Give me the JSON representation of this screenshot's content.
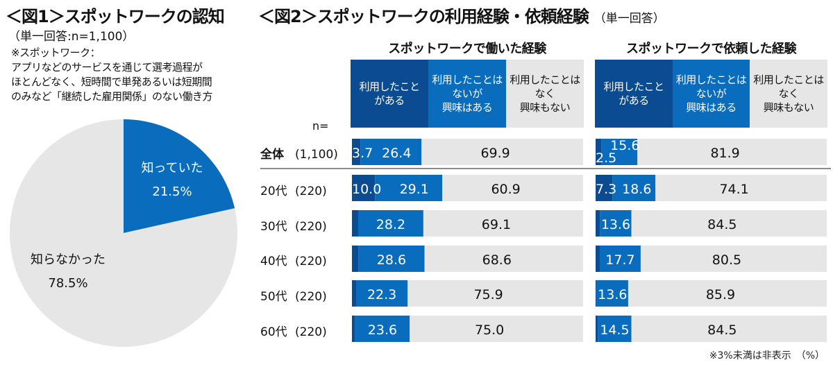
{
  "fig1": {
    "title": "＜図1＞スポットワークの認知",
    "subtitle": "（単一回答:n=1,100）",
    "note_lines": [
      "※スポットワーク：",
      "アプリなどのサービスを通じて選考過程が",
      "ほとんどなく、短時間で単発あるいは短期間",
      "のみなど「継続した雇用関係」のない働き方"
    ]
  },
  "fig2": {
    "title": "＜図2＞スポットワークの利用経験・依頼経験",
    "title_sub": "（単一回答）",
    "n_label": "n=",
    "footnote": "※3%未満は非表示　（%）"
  },
  "colors": {
    "dark_blue": "#0a4b92",
    "mid_blue": "#0a6cbd",
    "light_gray": "#e6e6e6",
    "separator": "#8c8c8c"
  },
  "chart_data": [
    {
      "type": "pie",
      "title": "＜図1＞スポットワークの認知",
      "labels": [
        "知っていた",
        "知らなかった"
      ],
      "values": [
        21.5,
        78.5
      ],
      "value_labels": [
        "21.5%",
        "78.5%"
      ],
      "colors": [
        "#0a6cbd",
        "#e6e6e6"
      ],
      "start": "12 o'clock, clockwise"
    },
    {
      "type": "bar",
      "orientation": "horizontal-stacked-100",
      "title": "スポットワークで働いた経験",
      "legend": [
        "利用したこと\nがある",
        "利用したことは\nないが\n興味はある",
        "利用したことは\nなく\n興味もない"
      ],
      "categories": [
        "全体",
        "20代",
        "30代",
        "40代",
        "50代",
        "60代"
      ],
      "n": [
        "(1,100)",
        "(220)",
        "(220)",
        "(220)",
        "(220)",
        "(220)"
      ],
      "series": [
        {
          "name": "利用したことがある",
          "values": [
            3.7,
            10.0,
            2.7,
            2.8,
            1.8,
            1.4
          ],
          "labels": [
            "3.7",
            "10.0",
            "",
            "",
            "",
            ""
          ]
        },
        {
          "name": "利用したことはないが興味はある",
          "values": [
            26.4,
            29.1,
            28.2,
            28.6,
            22.3,
            23.6
          ],
          "labels": [
            "26.4",
            "29.1",
            "28.2",
            "28.6",
            "22.3",
            "23.6"
          ]
        },
        {
          "name": "利用したことはなく興味もない",
          "values": [
            69.9,
            60.9,
            69.1,
            68.6,
            75.9,
            75.0
          ],
          "labels": [
            "69.9",
            "60.9",
            "69.1",
            "68.6",
            "75.9",
            "75.0"
          ]
        }
      ],
      "unit": "%"
    },
    {
      "type": "bar",
      "orientation": "horizontal-stacked-100",
      "title": "スポットワークで依頼した経験",
      "legend": [
        "利用したこと\nがある",
        "利用したことは\nないが\n興味はある",
        "利用したことは\nなく\n興味もない"
      ],
      "categories": [
        "全体",
        "20代",
        "30代",
        "40代",
        "50代",
        "60代"
      ],
      "n": [
        "(1,100)",
        "(220)",
        "(220)",
        "(220)",
        "(220)",
        "(220)"
      ],
      "series": [
        {
          "name": "利用したことがある",
          "values": [
            2.5,
            7.3,
            1.9,
            1.8,
            0.5,
            1.0
          ],
          "labels": [
            "2.5",
            "7.3",
            "",
            "",
            "",
            ""
          ]
        },
        {
          "name": "利用したことはないが興味はある",
          "values": [
            15.6,
            18.6,
            13.6,
            17.7,
            13.6,
            14.5
          ],
          "labels": [
            "15.6",
            "18.6",
            "13.6",
            "17.7",
            "13.6",
            "14.5"
          ]
        },
        {
          "name": "利用したことはなく興味もない",
          "values": [
            81.9,
            74.1,
            84.5,
            80.5,
            85.9,
            84.5
          ],
          "labels": [
            "81.9",
            "74.1",
            "84.5",
            "80.5",
            "85.9",
            "84.5"
          ]
        }
      ],
      "unit": "%"
    }
  ]
}
